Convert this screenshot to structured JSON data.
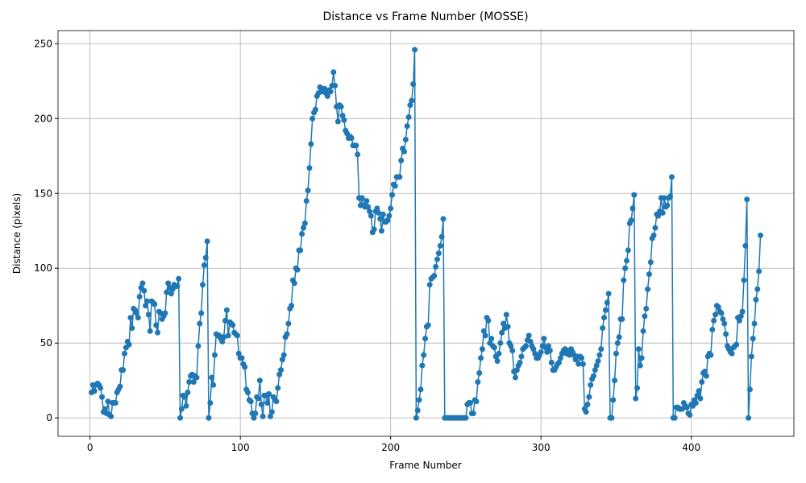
{
  "chart_data": {
    "type": "line",
    "title": "Distance vs Frame Number (MOSSE)",
    "x_label": "Frame Number",
    "y_label": "Distance (pixels)",
    "color": "#1f77b4",
    "grid": true,
    "xlim": [
      -21.25,
      468.25
    ],
    "xticks": [
      0,
      100,
      200,
      300,
      400
    ],
    "ylim": [
      -12.3,
      258.8
    ],
    "yticks": [
      0,
      50,
      100,
      150,
      200,
      250
    ],
    "x": [
      1,
      2,
      3,
      4,
      5,
      6,
      7,
      8,
      9,
      10,
      11,
      12,
      13,
      14,
      15,
      16,
      17,
      18,
      19,
      20,
      21,
      22,
      23,
      24,
      25,
      26,
      27,
      28,
      29,
      30,
      31,
      32,
      33,
      34,
      35,
      36,
      37,
      38,
      39,
      40,
      41,
      42,
      43,
      44,
      45,
      46,
      47,
      48,
      49,
      50,
      51,
      52,
      53,
      54,
      55,
      56,
      57,
      58,
      59,
      60,
      61,
      62,
      63,
      64,
      65,
      66,
      67,
      68,
      69,
      70,
      71,
      72,
      73,
      74,
      75,
      76,
      77,
      78,
      79,
      80,
      81,
      82,
      83,
      84,
      85,
      86,
      87,
      88,
      89,
      90,
      91,
      92,
      93,
      94,
      95,
      96,
      97,
      98,
      99,
      100,
      101,
      102,
      103,
      104,
      105,
      106,
      107,
      108,
      109,
      110,
      111,
      112,
      113,
      114,
      115,
      116,
      117,
      118,
      119,
      120,
      121,
      122,
      123,
      124,
      125,
      126,
      127,
      128,
      129,
      130,
      131,
      132,
      133,
      134,
      135,
      136,
      137,
      138,
      139,
      140,
      141,
      142,
      143,
      144,
      145,
      146,
      147,
      148,
      149,
      150,
      151,
      152,
      153,
      154,
      155,
      156,
      157,
      158,
      159,
      160,
      161,
      162,
      163,
      164,
      165,
      166,
      167,
      168,
      169,
      170,
      171,
      172,
      173,
      174,
      175,
      176,
      177,
      178,
      179,
      180,
      181,
      182,
      183,
      184,
      185,
      186,
      187,
      188,
      189,
      190,
      191,
      192,
      193,
      194,
      195,
      196,
      197,
      198,
      199,
      200,
      201,
      202,
      203,
      204,
      205,
      206,
      207,
      208,
      209,
      210,
      211,
      212,
      213,
      214,
      215,
      216,
      217,
      218,
      219,
      220,
      221,
      222,
      223,
      224,
      225,
      226,
      227,
      228,
      229,
      230,
      231,
      232,
      233,
      234,
      235,
      236,
      237,
      238,
      239,
      240,
      241,
      242,
      243,
      244,
      245,
      246,
      247,
      248,
      249,
      250,
      251,
      252,
      253,
      254,
      255,
      256,
      257,
      258,
      259,
      260,
      261,
      262,
      263,
      264,
      265,
      266,
      267,
      268,
      269,
      270,
      271,
      272,
      273,
      274,
      275,
      276,
      277,
      278,
      279,
      280,
      281,
      282,
      283,
      284,
      285,
      286,
      287,
      288,
      289,
      290,
      291,
      292,
      293,
      294,
      295,
      296,
      297,
      298,
      299,
      300,
      301,
      302,
      303,
      304,
      305,
      306,
      307,
      308,
      309,
      310,
      311,
      312,
      313,
      314,
      315,
      316,
      317,
      318,
      319,
      320,
      321,
      322,
      323,
      324,
      325,
      326,
      327,
      328,
      329,
      330,
      331,
      332,
      333,
      334,
      335,
      336,
      337,
      338,
      339,
      340,
      341,
      342,
      343,
      344,
      345,
      346,
      347,
      348,
      349,
      350,
      351,
      352,
      353,
      354,
      355,
      356,
      357,
      358,
      359,
      360,
      361,
      362,
      363,
      364,
      365,
      366,
      367,
      368,
      369,
      370,
      371,
      372,
      373,
      374,
      375,
      376,
      377,
      378,
      379,
      380,
      381,
      382,
      383,
      384,
      385,
      386,
      387,
      388,
      389,
      390,
      391,
      392,
      393,
      394,
      395,
      396,
      397,
      398,
      399,
      400,
      401,
      402,
      403,
      404,
      405,
      406,
      407,
      408,
      409,
      410,
      411,
      412,
      413,
      414,
      415,
      416,
      417,
      418,
      419,
      420,
      421,
      422,
      423,
      424,
      425,
      426,
      427,
      428,
      429,
      430,
      431,
      432,
      433,
      434,
      435,
      436,
      437,
      438,
      439,
      440,
      441,
      442,
      443,
      444,
      445,
      446
    ],
    "values": [
      17,
      22,
      18,
      22,
      23,
      22,
      20,
      14,
      4,
      6,
      3,
      11,
      2,
      1,
      10,
      10,
      10,
      17,
      19,
      21,
      32,
      32,
      43,
      47,
      51,
      49,
      67,
      60,
      73,
      72,
      70,
      67,
      81,
      87,
      90,
      85,
      75,
      78,
      69,
      58,
      78,
      77,
      76,
      62,
      57,
      71,
      70,
      66,
      68,
      70,
      84,
      90,
      87,
      83,
      86,
      89,
      88,
      88,
      93,
      0,
      6,
      15,
      14,
      8,
      17,
      24,
      28,
      29,
      24,
      28,
      27,
      48,
      63,
      70,
      89,
      102,
      107,
      118,
      0,
      10,
      27,
      22,
      42,
      56,
      55,
      55,
      53,
      51,
      54,
      65,
      72,
      55,
      64,
      63,
      62,
      57,
      56,
      55,
      43,
      40,
      40,
      36,
      34,
      19,
      17,
      12,
      11,
      3,
      0,
      3,
      14,
      13,
      25,
      9,
      1,
      15,
      15,
      10,
      16,
      1,
      4,
      14,
      12,
      11,
      20,
      29,
      32,
      39,
      42,
      54,
      56,
      63,
      73,
      75,
      92,
      90,
      100,
      99,
      112,
      112,
      123,
      127,
      130,
      145,
      152,
      167,
      183,
      200,
      204,
      206,
      215,
      217,
      221,
      219,
      218,
      220,
      217,
      215,
      219,
      218,
      222,
      231,
      222,
      208,
      198,
      209,
      208,
      202,
      199,
      192,
      190,
      187,
      188,
      187,
      182,
      182,
      182,
      176,
      147,
      142,
      147,
      142,
      141,
      145,
      141,
      138,
      135,
      124,
      126,
      138,
      140,
      137,
      133,
      125,
      136,
      131,
      131,
      132,
      135,
      140,
      149,
      156,
      155,
      161,
      161,
      161,
      172,
      180,
      178,
      186,
      195,
      201,
      209,
      212,
      223,
      246,
      0,
      5,
      12,
      19,
      35,
      42,
      53,
      61,
      62,
      89,
      93,
      94,
      95,
      101,
      106,
      110,
      115,
      121,
      133,
      0,
      0,
      0,
      0,
      0,
      0,
      0,
      0,
      0,
      0,
      0,
      0,
      0,
      0,
      0,
      9,
      10,
      10,
      3,
      3,
      12,
      11,
      24,
      30,
      40,
      46,
      58,
      55,
      67,
      65,
      50,
      53,
      48,
      47,
      41,
      38,
      43,
      50,
      57,
      63,
      60,
      69,
      61,
      50,
      48,
      45,
      31,
      27,
      32,
      35,
      37,
      41,
      46,
      47,
      48,
      52,
      55,
      51,
      48,
      46,
      43,
      40,
      40,
      42,
      44,
      48,
      53,
      47,
      44,
      48,
      45,
      37,
      32,
      32,
      34,
      36,
      37,
      40,
      43,
      45,
      46,
      43,
      45,
      42,
      46,
      44,
      42,
      39,
      41,
      36,
      41,
      40,
      36,
      6,
      4,
      9,
      14,
      22,
      26,
      28,
      32,
      35,
      38,
      42,
      46,
      60,
      67,
      72,
      77,
      83,
      0,
      0,
      12,
      25,
      43,
      50,
      54,
      66,
      66,
      92,
      100,
      105,
      112,
      130,
      132,
      140,
      149,
      13,
      20,
      46,
      35,
      40,
      58,
      68,
      73,
      86,
      96,
      104,
      120,
      122,
      127,
      136,
      135,
      138,
      147,
      137,
      147,
      141,
      142,
      147,
      148,
      161,
      0,
      0,
      7,
      7,
      6,
      6,
      6,
      10,
      8,
      7,
      3,
      2,
      9,
      8,
      12,
      10,
      15,
      18,
      13,
      24,
      30,
      31,
      28,
      41,
      43,
      42,
      59,
      65,
      69,
      75,
      74,
      71,
      70,
      66,
      63,
      56,
      48,
      46,
      44,
      43,
      47,
      48,
      49,
      67,
      65,
      68,
      71,
      92,
      115,
      146,
      0,
      19,
      41,
      53,
      63,
      79,
      86,
      98,
      122
    ]
  }
}
